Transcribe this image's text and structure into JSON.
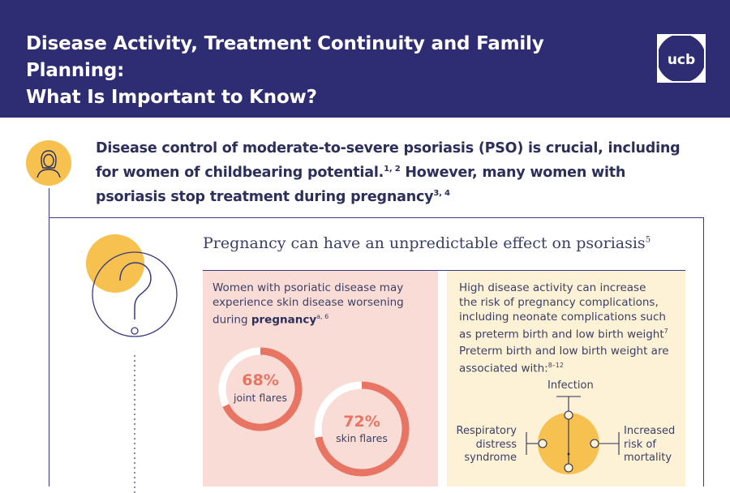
{
  "header": {
    "title_line1": "Disease Activity, Treatment Continuity and Family Planning:",
    "title_line2": "What Is Important to Know?",
    "logo_text": "ucb"
  },
  "intro": {
    "line1": "Disease control of moderate-to-severe psoriasis (PSO) is crucial, including",
    "line2a": "for women of childbearing potential.",
    "line2_ref": "1, 2",
    "line2b": " However, many women with",
    "line3": "psoriasis stop treatment during pregnancy",
    "line3_ref": "3, 4"
  },
  "section": {
    "title": "Pregnancy can have an unpredictable effect on psoriasis",
    "title_ref": "5"
  },
  "pink_panel": {
    "line1": "Women with psoriatic disease may",
    "line2": "experience skin disease worsening",
    "line3a": "during ",
    "line3_bold": "pregnancy",
    "line3_ref": "a, 6",
    "stats": [
      {
        "value": "68%",
        "label": "joint flares",
        "fraction": 0.68
      },
      {
        "value": "72%",
        "label": "skin flares",
        "fraction": 0.72
      }
    ]
  },
  "yellow_panel": {
    "line1": "High disease activity can increase",
    "line2": "the risk of pregnancy complications,",
    "line3": "including neonate complications such",
    "line4a": "as preterm birth and low birth weight",
    "line4_ref": "7",
    "line5": "Preterm birth and low birth weight are",
    "line6a": "associated with:",
    "line6_ref": "8–12",
    "complications": {
      "top": "Infection",
      "left_1": "Respiratory",
      "left_2": "distress",
      "left_3": "syndrome",
      "right_1": "Increased",
      "right_2": "risk of",
      "right_3": "mortality"
    }
  },
  "colors": {
    "navy": "#2e2c72",
    "coral": "#e87564",
    "pink_bg": "#f9dcd6",
    "yellow": "#f6c14f",
    "yellow_bg": "#fdf1d6"
  },
  "icons": [
    "ucb-logo",
    "woman-avatar-icon",
    "question-mark-icon"
  ]
}
